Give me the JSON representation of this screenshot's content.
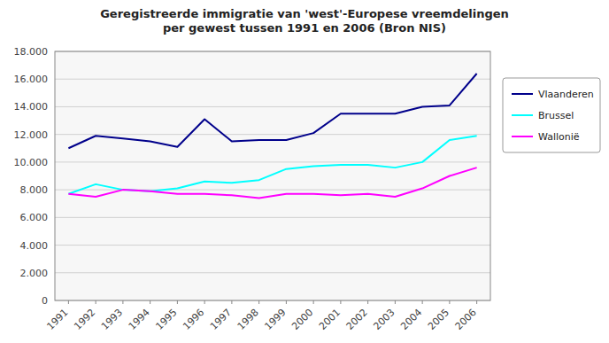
{
  "chart_data": {
    "type": "line",
    "title": "Geregistreerde immigratie van 'west'-Europese vreemdelingen\nper gewest tussen 1991 en 2006 (Bron NIS)",
    "x": [
      1991,
      1992,
      1993,
      1994,
      1995,
      1996,
      1997,
      1998,
      1999,
      2000,
      2001,
      2002,
      2003,
      2004,
      2005,
      2006
    ],
    "series": [
      {
        "name": "Vlaanderen",
        "color": "#00008B",
        "values": [
          11000,
          11900,
          11700,
          11500,
          11100,
          13100,
          11500,
          11600,
          11600,
          12100,
          13500,
          13500,
          13500,
          14000,
          14100,
          16400
        ]
      },
      {
        "name": "Brussel",
        "color": "#00FFFF",
        "values": [
          7700,
          8400,
          8000,
          7900,
          8100,
          8600,
          8500,
          8700,
          9500,
          9700,
          9800,
          9800,
          9600,
          10000,
          11600,
          11900
        ]
      },
      {
        "name": "Wallonië",
        "color": "#FF00FF",
        "values": [
          7700,
          7500,
          8000,
          7900,
          7700,
          7700,
          7600,
          7400,
          7700,
          7700,
          7600,
          7700,
          7500,
          8100,
          9000,
          9600
        ]
      }
    ],
    "xlim": [
      1990.5,
      2006.5
    ],
    "xticks": [
      1991,
      1992,
      1993,
      1994,
      1995,
      1996,
      1997,
      1998,
      1999,
      2000,
      2001,
      2002,
      2003,
      2004,
      2005,
      2006
    ],
    "ylim": [
      0,
      18000
    ],
    "yticks": [
      0,
      {
        "value": 2000,
        "label": "2.000"
      },
      {
        "value": 4000,
        "label": "4.000"
      },
      {
        "value": 6000,
        "label": "6.000"
      },
      {
        "value": 8000,
        "label": "8.000"
      },
      {
        "value": 10000,
        "label": "10.000"
      },
      {
        "value": 12000,
        "label": "12.000"
      },
      {
        "value": 14000,
        "label": "14.000"
      },
      {
        "value": 16000,
        "label": "16.000"
      },
      {
        "value": 18000,
        "label": "18.000"
      }
    ],
    "grid": true,
    "legend": "right"
  }
}
